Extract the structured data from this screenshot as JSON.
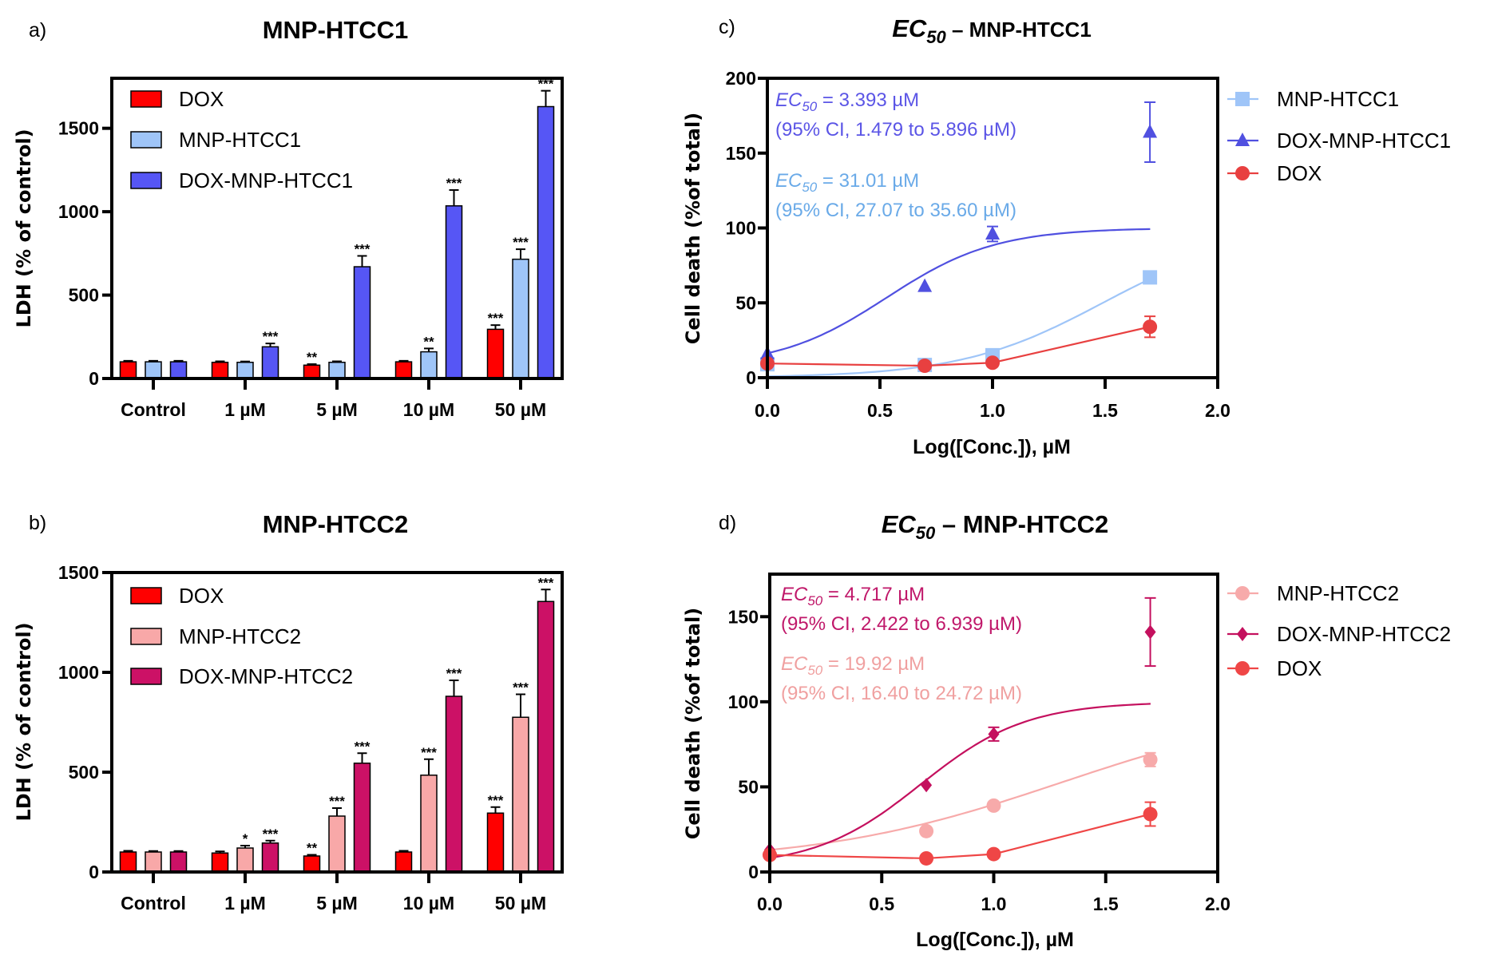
{
  "chart_data": [
    {
      "panel": "a)",
      "type": "bar",
      "title": "MNP-HTCC1",
      "ylabel": "LDH (% of control)",
      "xlabel": "",
      "ylim": [
        0,
        1800
      ],
      "yticks": [
        0,
        500,
        1000,
        1500
      ],
      "categories": [
        "Control",
        "1 µM",
        "5 µM",
        "10 µM",
        "50 µM"
      ],
      "legend_position": "top-left",
      "series": [
        {
          "name": "DOX",
          "color": "#ff0000",
          "values": [
            100,
            97,
            80,
            100,
            295
          ],
          "errors": [
            6,
            6,
            6,
            6,
            25
          ],
          "significance": [
            "",
            "",
            "**",
            "",
            "***"
          ]
        },
        {
          "name": "MNP-HTCC1",
          "color": "#9fc5f8",
          "values": [
            100,
            97,
            97,
            160,
            715
          ],
          "errors": [
            6,
            5,
            6,
            20,
            60
          ],
          "significance": [
            "",
            "",
            "",
            "**",
            "***"
          ]
        },
        {
          "name": "DOX-MNP-HTCC1",
          "color": "#5656f5",
          "values": [
            100,
            190,
            670,
            1035,
            1630
          ],
          "errors": [
            6,
            20,
            65,
            95,
            95
          ],
          "significance": [
            "",
            "***",
            "***",
            "***",
            "***"
          ]
        }
      ]
    },
    {
      "panel": "b)",
      "type": "bar",
      "title": "MNP-HTCC2",
      "ylabel": "LDH (% of control)",
      "xlabel": "",
      "ylim": [
        0,
        1500
      ],
      "yticks": [
        0,
        500,
        1000,
        1500
      ],
      "categories": [
        "Control",
        "1 µM",
        "5 µM",
        "10 µM",
        "50 µM"
      ],
      "legend_position": "top-left",
      "series": [
        {
          "name": "DOX",
          "color": "#ff0000",
          "values": [
            100,
            95,
            80,
            100,
            295
          ],
          "errors": [
            6,
            8,
            6,
            6,
            30
          ],
          "significance": [
            "",
            "",
            "**",
            "",
            "***"
          ]
        },
        {
          "name": "MNP-HTCC2",
          "color": "#f8a8a8",
          "values": [
            100,
            120,
            280,
            485,
            775
          ],
          "errors": [
            5,
            12,
            40,
            80,
            115
          ],
          "significance": [
            "",
            "*",
            "***",
            "***",
            "***"
          ]
        },
        {
          "name": "DOX-MNP-HTCC2",
          "color": "#cc1166",
          "values": [
            100,
            145,
            545,
            880,
            1355
          ],
          "errors": [
            5,
            12,
            50,
            80,
            60
          ],
          "significance": [
            "",
            "***",
            "***",
            "***",
            "***"
          ]
        }
      ]
    },
    {
      "panel": "c)",
      "type": "line",
      "title": {
        "prefix": "EC",
        "sub": "50",
        "rest": " – MNP-HTCC1"
      },
      "xlabel": "Log([Conc.]), µM",
      "ylabel": "Cell death (%of total)",
      "xlim": [
        0,
        2
      ],
      "ylim": [
        0,
        200
      ],
      "xticks": [
        "0.0",
        "0.5",
        "1.0",
        "1.5",
        "2.0"
      ],
      "yticks": [
        0,
        50,
        100,
        150,
        200
      ],
      "legend_position": "right",
      "annotations": [
        {
          "prefix": "EC",
          "sub": "50",
          "rest": " = 3.393 µM",
          "ci": "(95% CI, 1.479 to 5.896 µM)",
          "color": "#5b55e6"
        },
        {
          "prefix": "EC",
          "sub": "50",
          "rest": " = 31.01 µM",
          "ci": "(95% CI, 27.07 to 35.60 µM)",
          "color": "#6aaae8"
        }
      ],
      "series": [
        {
          "name": "MNP-HTCC1",
          "color": "#9fc5f8",
          "marker": "square",
          "x": [
            0,
            0.699,
            1,
            1.699
          ],
          "y": [
            9,
            8.5,
            15,
            67
          ],
          "errors": [
            2,
            2,
            2,
            2
          ],
          "fit": {
            "type": "hill",
            "bottom": 0,
            "top": 100,
            "logEC50": 1.49,
            "hill": 1.37
          }
        },
        {
          "name": "DOX-MNP-HTCC1",
          "color": "#5050e0",
          "marker": "triangle",
          "x": [
            0,
            0.699,
            1,
            1.699
          ],
          "y": [
            16,
            61,
            96,
            164
          ],
          "errors": [
            1,
            1,
            5,
            20
          ],
          "fit": {
            "type": "hill",
            "bottom": 7,
            "top": 100,
            "logEC50": 0.53,
            "hill": 1.8
          }
        },
        {
          "name": "DOX",
          "color": "#e84040",
          "marker": "circle",
          "x": [
            0,
            0.699,
            1,
            1.699
          ],
          "y": [
            9.5,
            8,
            10,
            34
          ],
          "errors": [
            1,
            1,
            1,
            7
          ],
          "fit": {
            "type": "polyline"
          }
        }
      ]
    },
    {
      "panel": "d)",
      "type": "line",
      "title": {
        "prefix": "EC",
        "sub": "50",
        "rest": " – MNP-HTCC2"
      },
      "xlabel": "Log([Conc.]), µM",
      "ylabel": "Cell death (%of total)",
      "xlim": [
        0,
        2
      ],
      "ylim": [
        0,
        175
      ],
      "xticks": [
        "0.0",
        "0.5",
        "1.0",
        "1.5",
        "2.0"
      ],
      "yticks": [
        0,
        50,
        100,
        150
      ],
      "legend_position": "right",
      "annotations": [
        {
          "prefix": "EC",
          "sub": "50",
          "rest": " = 4.717 µM",
          "ci": "(95% CI, 2.422 to 6.939 µM)",
          "color": "#c0186a"
        },
        {
          "prefix": "EC",
          "sub": "50",
          "rest": " = 19.92 µM",
          "ci": "(95% CI, 16.40 to 24.72 µM)",
          "color": "#f0a0a0"
        }
      ],
      "series": [
        {
          "name": "MNP-HTCC2",
          "color": "#f7aaaa",
          "marker": "circle",
          "x": [
            0,
            0.699,
            1,
            1.699
          ],
          "y": [
            10,
            24,
            39,
            66
          ],
          "errors": [
            1,
            1,
            1,
            4
          ],
          "fit": {
            "type": "hill",
            "bottom": 5,
            "top": 100,
            "logEC50": 1.3,
            "hill": 0.8
          }
        },
        {
          "name": "DOX-MNP-HTCC2",
          "color": "#c4105e",
          "marker": "diamond",
          "x": [
            0,
            0.699,
            1,
            1.699
          ],
          "y": [
            13,
            51,
            81,
            141
          ],
          "errors": [
            1,
            1,
            4,
            20
          ],
          "fit": {
            "type": "hill",
            "bottom": 3,
            "top": 100,
            "logEC50": 0.674,
            "hill": 1.85
          }
        },
        {
          "name": "DOX",
          "color": "#ef4646",
          "marker": "circle",
          "x": [
            0,
            0.699,
            1,
            1.699
          ],
          "y": [
            10,
            8,
            10.5,
            34
          ],
          "errors": [
            1,
            1,
            1,
            7
          ],
          "fit": {
            "type": "polyline"
          }
        }
      ]
    }
  ]
}
